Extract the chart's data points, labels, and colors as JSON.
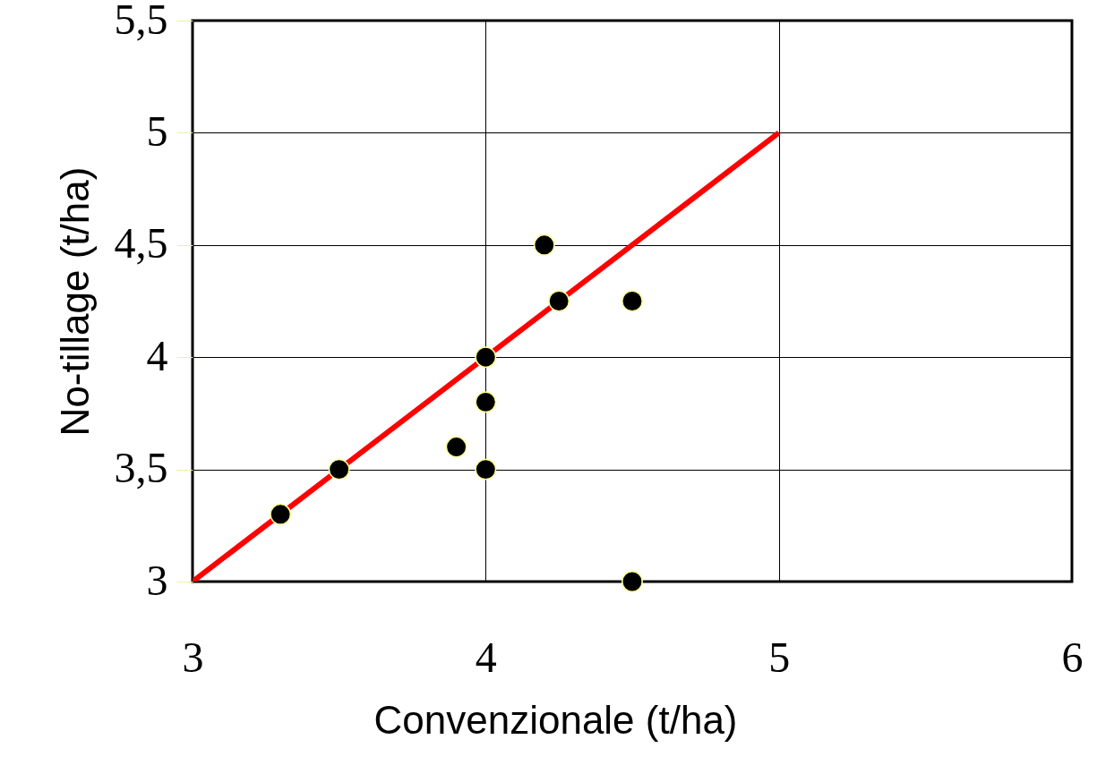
{
  "chart_data": {
    "type": "scatter",
    "xlabel": "Convenzionale (t/ha)",
    "ylabel": "No-tillage (t/ha)",
    "xlim": [
      3,
      6
    ],
    "ylim": [
      3,
      5.5
    ],
    "xticks": [
      3,
      4,
      5,
      6
    ],
    "yticks": [
      3,
      {
        "value": 3.5,
        "label": "3,5"
      },
      4,
      {
        "value": 4.5,
        "label": "4,5"
      },
      5,
      {
        "value": 5.5,
        "label": "5,5"
      }
    ],
    "grid": true,
    "series": [
      {
        "type": "line",
        "color": "#ff0000",
        "x": [
          3,
          5
        ],
        "values": [
          3,
          5
        ]
      },
      {
        "marker": "circle",
        "color": "#000000",
        "x": [
          3.3,
          3.5,
          3.9,
          4,
          4,
          4,
          4.2,
          4.25,
          4.5,
          4.5
        ],
        "values": [
          3.3,
          3.5,
          3.6,
          3.5,
          3.8,
          4.0,
          4.5,
          4.25,
          4.25,
          3.0
        ]
      }
    ]
  }
}
